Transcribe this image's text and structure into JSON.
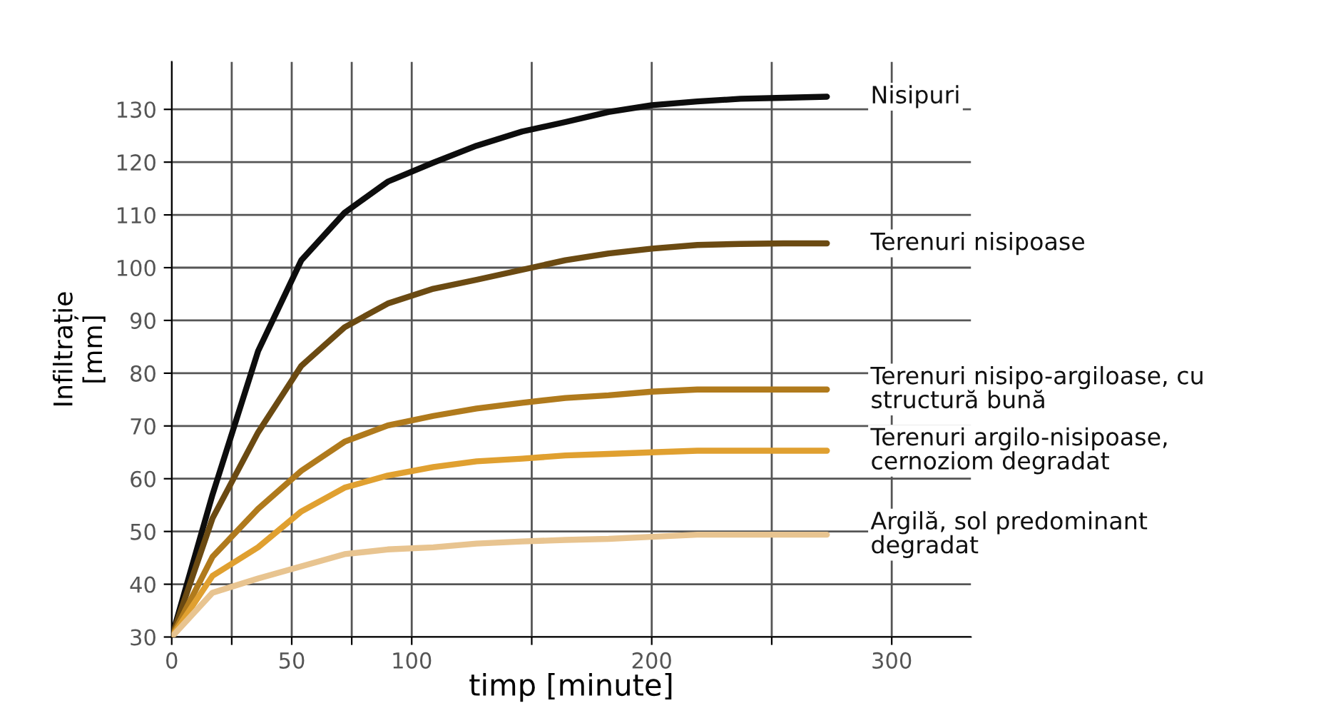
{
  "chart_data": {
    "type": "line",
    "xlabel": "timp [minute]",
    "ylabel": "Infiltrație\n[mm]",
    "x": [
      0,
      17,
      36,
      54,
      72,
      90,
      109,
      127,
      146,
      164,
      182,
      200,
      219,
      237,
      255,
      273
    ],
    "series": [
      {
        "name": "Nisipuri",
        "color": "#0d0d0d",
        "values": [
          30,
          57,
          84.2,
          101.4,
          110.4,
          116.3,
          119.9,
          123.1,
          125.8,
          127.6,
          129.5,
          130.8,
          131.5,
          132,
          132.2,
          132.4
        ]
      },
      {
        "name": "Terenuri nisipoase",
        "color": "#6b4a12",
        "values": [
          30,
          52.5,
          68.8,
          81.4,
          88.7,
          93.2,
          96,
          97.7,
          99.6,
          101.4,
          102.7,
          103.6,
          104.3,
          104.5,
          104.6,
          104.6
        ]
      },
      {
        "name": "Terenuri nisipo-argiloase, cu\nstructură bună",
        "color": "#b07a1c",
        "values": [
          30,
          45.2,
          54.3,
          61.5,
          67,
          70.1,
          71.9,
          73.3,
          74.4,
          75.3,
          75.8,
          76.5,
          76.9,
          76.9,
          76.9,
          76.9
        ]
      },
      {
        "name": "Terenuri argilo-nisipoase,\ncernoziom degradat",
        "color": "#e0a030",
        "values": [
          30,
          41.6,
          47,
          53.8,
          58.3,
          60.6,
          62.2,
          63.3,
          63.8,
          64.4,
          64.7,
          65,
          65.3,
          65.3,
          65.3,
          65.3
        ]
      },
      {
        "name": "Argilă, sol predominant\ndegradat",
        "color": "#e8c490",
        "values": [
          30,
          38.4,
          41.1,
          43.4,
          45.7,
          46.6,
          47,
          47.7,
          48.1,
          48.4,
          48.6,
          49,
          49.4,
          49.4,
          49.4,
          49.4
        ]
      }
    ],
    "xlim": [
      0,
      333
    ],
    "ylim": [
      30,
      139
    ],
    "xticks": [
      0,
      {
        "value": 25,
        "label": null
      },
      50,
      {
        "value": 75,
        "label": null
      },
      100,
      {
        "value": 150,
        "label": null
      },
      200,
      {
        "value": 250,
        "label": null
      },
      300
    ],
    "yticks": [
      30,
      40,
      50,
      60,
      70,
      80,
      90,
      100,
      110,
      120,
      130
    ],
    "grid": true,
    "legend": false,
    "marker": "none",
    "line_style": "solid"
  }
}
